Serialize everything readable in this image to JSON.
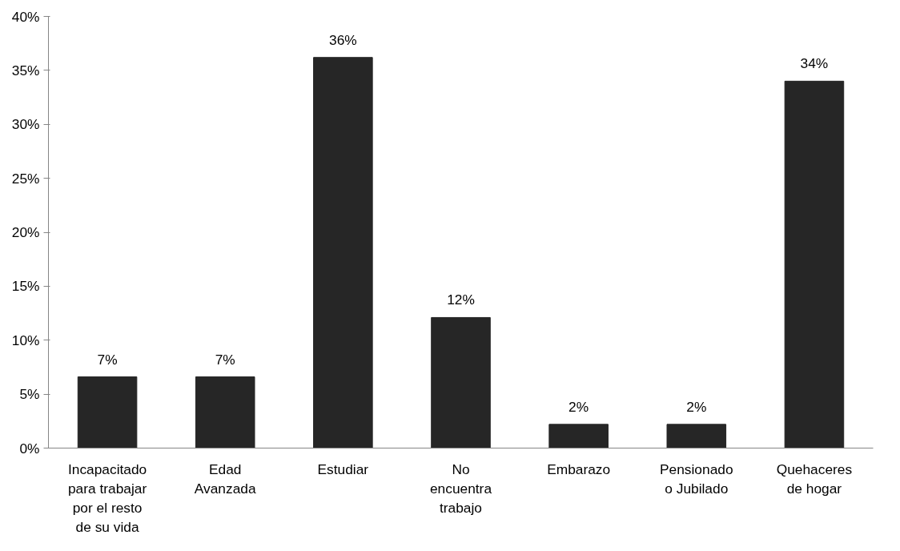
{
  "chart_data": {
    "type": "bar",
    "categories": [
      "Incapacitado\npara trabajar\npor el resto\nde su vida",
      "Edad\nAvanzada",
      "Estudiar",
      "No\nencuentra\ntrabajo",
      "Embarazo",
      "Pensionado\no Jubilado",
      "Quehaceres\nde hogar"
    ],
    "values": [
      6.6,
      6.6,
      36.2,
      12.1,
      2.2,
      2.2,
      34.0
    ],
    "value_labels": [
      "7%",
      "7%",
      "36%",
      "12%",
      "2%",
      "2%",
      "34%"
    ],
    "color": "#262626",
    "ylim": [
      0,
      40
    ],
    "yticks": [
      {
        "value": 0,
        "label": "0%"
      },
      {
        "value": 5,
        "label": "5%"
      },
      {
        "value": 10,
        "label": "10%"
      },
      {
        "value": 15,
        "label": "15%"
      },
      {
        "value": 20,
        "label": "20%"
      },
      {
        "value": 25,
        "label": "25%"
      },
      {
        "value": 30,
        "label": "30%"
      },
      {
        "value": 35,
        "label": "35%"
      },
      {
        "value": 40,
        "label": "40%"
      }
    ],
    "grid": false
  }
}
